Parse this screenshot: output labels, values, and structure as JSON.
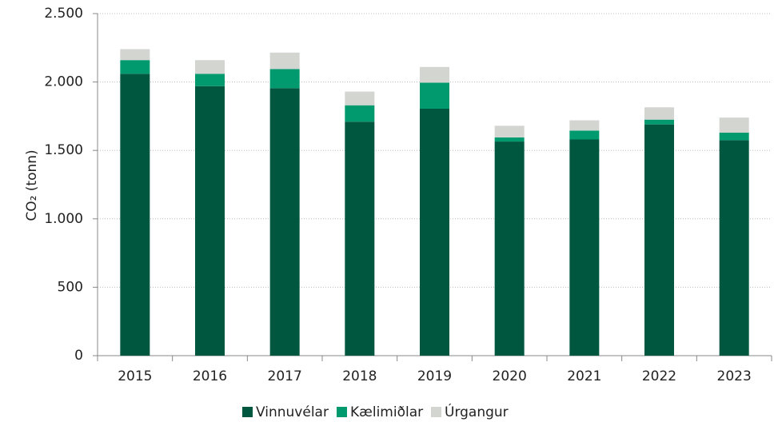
{
  "chart_data": {
    "type": "stacked_bar",
    "y_label": "CO₂ (tonn)",
    "categories": [
      "2015",
      "2016",
      "2017",
      "2018",
      "2019",
      "2020",
      "2021",
      "2022",
      "2023"
    ],
    "series": [
      {
        "name": "Vinnuvélar",
        "color": "#00573f",
        "values": [
          2060,
          1970,
          1955,
          1710,
          1805,
          1565,
          1580,
          1690,
          1575
        ]
      },
      {
        "name": "Kælimiðlar",
        "color": "#009a6e",
        "values": [
          100,
          90,
          140,
          120,
          190,
          30,
          65,
          35,
          55
        ]
      },
      {
        "name": "Úrgangur",
        "color": "#d3d5d1",
        "values": [
          80,
          100,
          120,
          100,
          115,
          85,
          75,
          90,
          110
        ]
      }
    ],
    "ylim": [
      0,
      2500
    ],
    "yticks": [
      0,
      500,
      {
        "value": 1000,
        "label": "1.000"
      },
      {
        "value": 1500,
        "label": "1.500"
      },
      {
        "value": 2000,
        "label": "2.000"
      },
      {
        "value": 2500,
        "label": "2.500"
      }
    ],
    "grid": true,
    "legend": "bottom"
  }
}
